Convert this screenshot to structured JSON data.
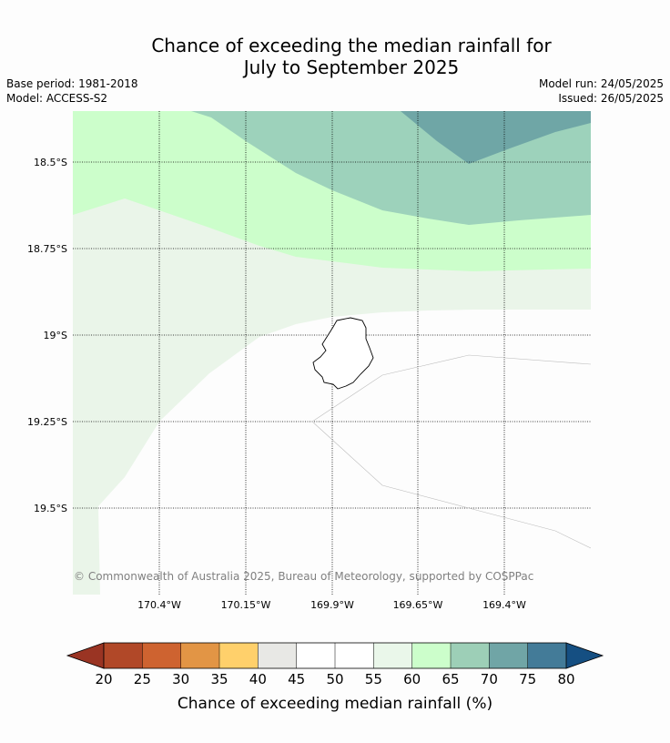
{
  "title": {
    "line1": "Chance of exceeding the median rainfall for",
    "line2": "July to September 2025"
  },
  "meta": {
    "base_period": "Base period: 1981-2018",
    "model": "Model: ACCESS-S2",
    "model_run": "Model run: 24/05/2025",
    "issued": "Issued: 26/05/2025"
  },
  "map": {
    "lat_labels": [
      "18.5°S",
      "18.75°S",
      "19°S",
      "19.25°S",
      "19.5°S"
    ],
    "lon_labels": [
      "170.4°W",
      "170.15°W",
      "169.9°W",
      "169.65°W",
      "169.4°W"
    ],
    "copyright": "© Commonwealth of Australia 2025, Bureau of Meteorology, supported by COSPPac",
    "zones": [
      {
        "name": "75-80%",
        "color": "#6fa6a6"
      },
      {
        "name": "70-75%",
        "color": "#9dd2bb"
      },
      {
        "name": "65-70%",
        "color": "#ccfecb"
      },
      {
        "name": "55-60%",
        "color": "#eaf5e9"
      },
      {
        "name": "45-55%",
        "color": "#fdfdfd"
      }
    ]
  },
  "colorbar": {
    "title": "Chance of exceeding median rainfall (%)",
    "ticks": [
      "20",
      "25",
      "30",
      "35",
      "40",
      "45",
      "50",
      "55",
      "60",
      "65",
      "70",
      "75",
      "80"
    ],
    "under_color": "#9a3423",
    "over_color": "#154f82",
    "colors": [
      "#b14828",
      "#ce6330",
      "#e29545",
      "#ffd06b",
      "#e8e8e5",
      "#ffffff",
      "#ffffff",
      "#eaf7ea",
      "#ccfecb",
      "#9dcfb7",
      "#70a5a6",
      "#437b98"
    ]
  }
}
